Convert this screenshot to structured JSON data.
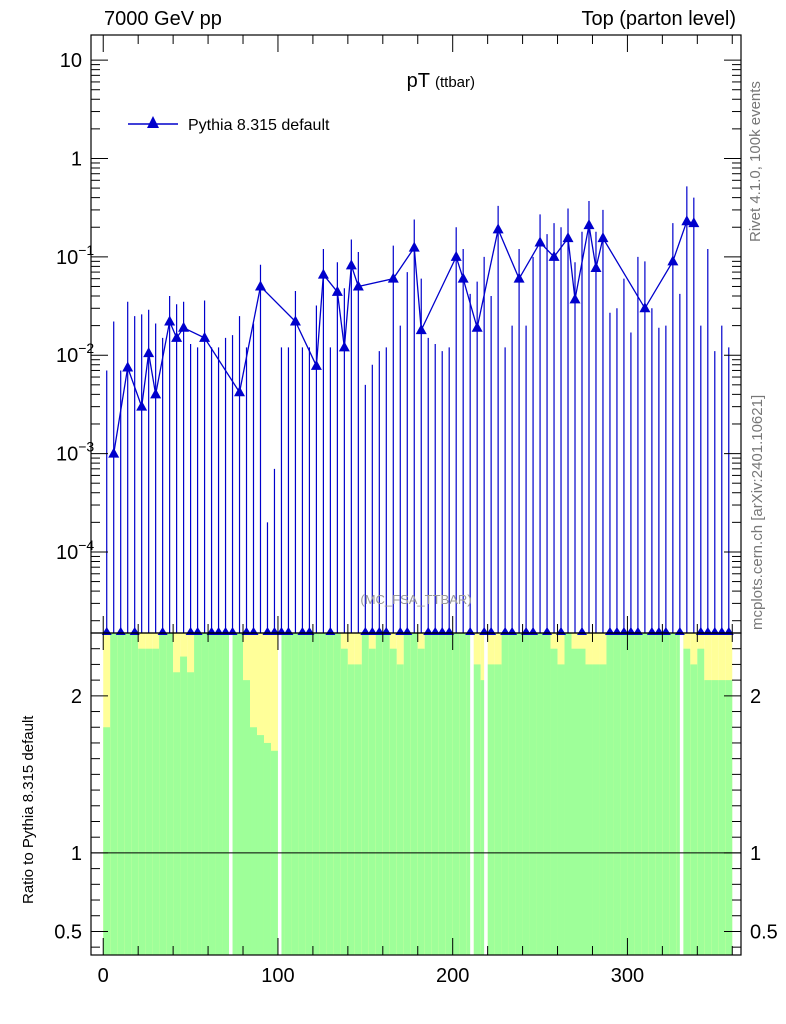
{
  "header": {
    "left": "7000 GeV pp",
    "right": "Top (parton level)"
  },
  "side_labels": {
    "rivet": "Rivet 4.1.0,  100k events",
    "url": "mcplots.cern.ch [arXiv:2401.10621]"
  },
  "colors": {
    "mc": "#0000cc",
    "band_inner": "#9eff99",
    "band_outer": "#ffff99",
    "axis": "#000000"
  },
  "chart_data": [
    {
      "type": "line",
      "title": "pT",
      "subtitle": "(ttbar)",
      "watermark": "(MC_FSA_TTBAR)",
      "yscale": "log",
      "ylim": [
        1.5e-05,
        18
      ],
      "xlim": [
        -7,
        365
      ],
      "ytick_labels": [
        {
          "v": 10,
          "base": "10",
          "exp": ""
        },
        {
          "v": 1,
          "base": "1",
          "exp": ""
        },
        {
          "v": 0.1,
          "base": "10",
          "exp": "−1"
        },
        {
          "v": 0.01,
          "base": "10",
          "exp": "−2"
        },
        {
          "v": 0.001,
          "base": "10",
          "exp": "−3"
        },
        {
          "v": 0.0001,
          "base": "10",
          "exp": "−4"
        }
      ],
      "legend": [
        {
          "label": "Pythia 8.315 default",
          "marker": "triangle"
        }
      ],
      "series": [
        {
          "name": "Pythia 8.315 default",
          "x": [
            6,
            14,
            22,
            26,
            30,
            38,
            42,
            46,
            58,
            78,
            90,
            110,
            122,
            126,
            134,
            138,
            142,
            146,
            166,
            178,
            182,
            202,
            206,
            214,
            226,
            238,
            250,
            258,
            266,
            270,
            278,
            282,
            286,
            310,
            326,
            334,
            338
          ],
          "y": [
            0.001,
            0.0075,
            0.003,
            0.0105,
            0.004,
            0.022,
            0.015,
            0.019,
            0.015,
            0.0042,
            0.05,
            0.022,
            0.0078,
            0.066,
            0.044,
            0.012,
            0.082,
            0.05,
            0.06,
            0.124,
            0.018,
            0.1,
            0.06,
            0.019,
            0.19,
            0.06,
            0.14,
            0.1,
            0.155,
            0.037,
            0.21,
            0.077,
            0.155,
            0.03,
            0.09,
            0.23,
            0.22
          ],
          "err_hi": [
            0.022,
            0.035,
            0.026,
            0.029,
            0.021,
            0.04,
            0.033,
            0.035,
            0.036,
            0.025,
            0.083,
            0.045,
            0.032,
            0.12,
            0.088,
            0.048,
            0.15,
            0.112,
            0.13,
            0.24,
            0.06,
            0.2,
            0.12,
            0.056,
            0.33,
            0.12,
            0.27,
            0.22,
            0.31,
            0.088,
            0.37,
            0.18,
            0.3,
            0.09,
            0.22,
            0.52,
            0.4
          ],
          "zero_x": [
            2,
            10,
            18,
            34,
            50,
            54,
            62,
            66,
            70,
            74,
            82,
            86,
            94,
            98,
            102,
            106,
            114,
            118,
            130,
            150,
            154,
            158,
            162,
            170,
            174,
            186,
            190,
            194,
            198,
            210,
            218,
            222,
            230,
            234,
            242,
            246,
            254,
            262,
            274,
            290,
            294,
            298,
            302,
            306,
            314,
            318,
            322,
            330,
            342,
            346,
            350,
            354,
            358
          ],
          "zero_err_y": [
            0.007,
            0.007,
            0.025,
            0.015,
            0.013,
            0.012,
            0.012,
            0.012,
            0.015,
            0.016,
            0.012,
            0.021,
            0.0002,
            0.0007,
            0.012,
            0.012,
            0.012,
            0.012,
            0.012,
            0.005,
            0.008,
            0.011,
            0.012,
            0.02,
            0.07,
            0.015,
            0.013,
            0.011,
            0.012,
            0.042,
            0.1,
            0.04,
            0.012,
            0.02,
            0.02,
            0.1,
            0.17,
            0.2,
            0.18,
            0.027,
            0.03,
            0.06,
            0.017,
            0.1,
            0.03,
            0.019,
            0.02,
            0.042,
            0.02,
            0.12,
            0.011,
            0.02,
            0.012
          ]
        }
      ]
    },
    {
      "type": "area",
      "ylabel": "Ratio to Pythia 8.315 default",
      "xlabel": "",
      "ylim": [
        0.35,
        2.4
      ],
      "xlim": [
        -7,
        365
      ],
      "ytick_labels": [
        "2",
        "1",
        "0.5"
      ],
      "ytick_values": [
        2,
        1,
        0.5
      ],
      "xtick_labels": [
        "0",
        "100",
        "200",
        "300"
      ],
      "xtick_values": [
        0,
        100,
        200,
        300
      ],
      "reference": 1,
      "band_edges": [
        0,
        4,
        8,
        12,
        16,
        20,
        24,
        28,
        32,
        36,
        40,
        44,
        48,
        52,
        56,
        60,
        64,
        68,
        72,
        76,
        80,
        84,
        88,
        92,
        96,
        100,
        104,
        108,
        112,
        116,
        120,
        124,
        128,
        132,
        136,
        140,
        144,
        148,
        152,
        156,
        160,
        164,
        168,
        172,
        176,
        180,
        184,
        188,
        192,
        196,
        200,
        204,
        208,
        212,
        216,
        220,
        224,
        228,
        232,
        236,
        240,
        244,
        248,
        252,
        256,
        260,
        264,
        268,
        272,
        276,
        280,
        284,
        288,
        292,
        296,
        300,
        304,
        308,
        312,
        316,
        320,
        324,
        328,
        332,
        336,
        340,
        344,
        348,
        352,
        356,
        360
      ],
      "green_hi": [
        1.8,
        2.4,
        2.4,
        2.4,
        2.4,
        2.3,
        2.3,
        2.3,
        2.4,
        2.4,
        2.15,
        2.25,
        2.15,
        2.4,
        2.4,
        2.4,
        2.4,
        2.4,
        2.4,
        2.4,
        2.1,
        1.8,
        1.75,
        1.7,
        1.65,
        2.4,
        2.4,
        2.4,
        2.4,
        2.4,
        2.4,
        2.4,
        2.4,
        2.4,
        2.3,
        2.2,
        2.2,
        2.4,
        2.3,
        2.4,
        2.4,
        2.3,
        2.2,
        2.4,
        2.4,
        2.3,
        2.4,
        2.4,
        2.4,
        2.4,
        2.4,
        2.4,
        2.4,
        2.2,
        2.1,
        2.2,
        2.2,
        2.4,
        2.4,
        2.4,
        2.4,
        2.4,
        2.4,
        2.4,
        2.3,
        2.2,
        2.4,
        2.3,
        2.3,
        2.2,
        2.2,
        2.2,
        2.4,
        2.4,
        2.4,
        2.4,
        2.4,
        2.4,
        2.4,
        2.4,
        2.4,
        2.4,
        2.4,
        2.3,
        2.2,
        2.3,
        2.1,
        2.1,
        2.1,
        2.1
      ],
      "yellow_hi": [
        2.4,
        2.4,
        2.4,
        2.4,
        2.4,
        2.4,
        2.4,
        2.4,
        2.4,
        2.4,
        2.4,
        2.4,
        2.4,
        2.4,
        2.4,
        2.4,
        2.4,
        2.4,
        2.4,
        2.4,
        2.4,
        2.4,
        2.4,
        2.4,
        2.4,
        2.4,
        2.4,
        2.4,
        2.4,
        2.4,
        2.4,
        2.4,
        2.4,
        2.4,
        2.4,
        2.4,
        2.4,
        2.4,
        2.4,
        2.4,
        2.4,
        2.4,
        2.4,
        2.4,
        2.4,
        2.4,
        2.4,
        2.4,
        2.4,
        2.4,
        2.4,
        2.4,
        2.4,
        2.4,
        2.4,
        2.4,
        2.4,
        2.4,
        2.4,
        2.4,
        2.4,
        2.4,
        2.4,
        2.4,
        2.4,
        2.4,
        2.4,
        2.4,
        2.4,
        2.4,
        2.4,
        2.4,
        2.4,
        2.4,
        2.4,
        2.4,
        2.4,
        2.4,
        2.4,
        2.4,
        2.4,
        2.4,
        2.4,
        2.4,
        2.4,
        2.4,
        2.4,
        2.4,
        2.4,
        2.4
      ],
      "gaps_x": [
        [
          72,
          74
        ],
        [
          100,
          102
        ],
        [
          210,
          212
        ],
        [
          218,
          220
        ],
        [
          330,
          332
        ]
      ]
    }
  ]
}
